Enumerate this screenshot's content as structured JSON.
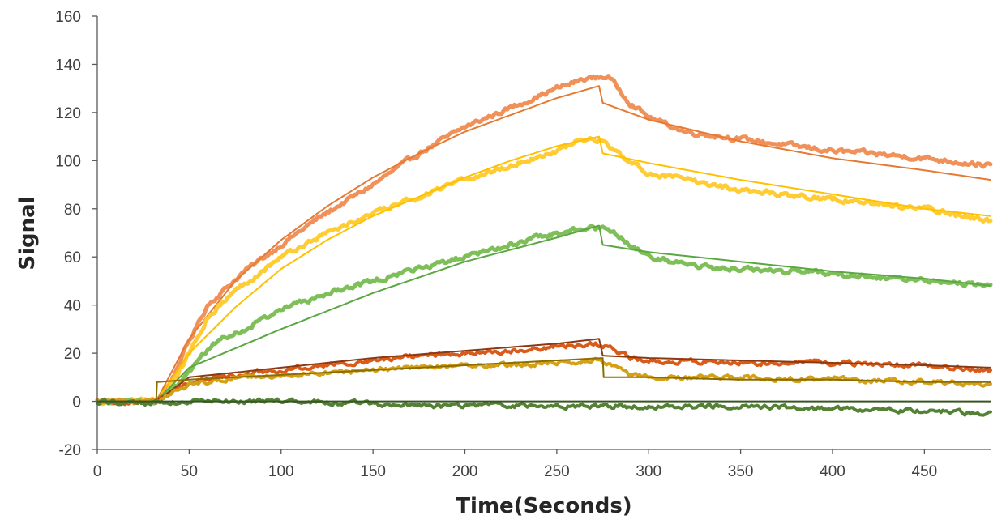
{
  "chart_data": {
    "type": "line",
    "title": "",
    "xlabel": "Time(Seconds)",
    "ylabel": "Signal",
    "xlim": [
      0,
      486
    ],
    "ylim": [
      -20,
      160
    ],
    "xticks": [
      0,
      50,
      100,
      150,
      200,
      250,
      300,
      350,
      400,
      450
    ],
    "yticks": [
      -20,
      0,
      20,
      40,
      60,
      80,
      100,
      120,
      140,
      160
    ],
    "grid": false,
    "legend": "none",
    "association_start": 32,
    "dissociation_start": 275,
    "series": [
      {
        "kind": "measured",
        "color": "#F0915A",
        "width": 5,
        "x": [
          0,
          32,
          40,
          50,
          60,
          80,
          100,
          120,
          150,
          175,
          200,
          225,
          250,
          265,
          278,
          290,
          300,
          320,
          350,
          380,
          400,
          420,
          450,
          486
        ],
        "y": [
          0,
          0,
          8,
          25,
          40,
          54,
          65,
          76,
          90,
          103,
          114,
          122,
          130,
          134,
          135,
          124,
          118,
          112,
          109,
          106,
          104,
          103,
          101,
          98
        ]
      },
      {
        "kind": "fit",
        "color": "#E57A33",
        "width": 2,
        "x": [
          0,
          32,
          50,
          75,
          100,
          125,
          150,
          175,
          200,
          225,
          250,
          273,
          275,
          300,
          350,
          400,
          450,
          486
        ],
        "y": [
          0,
          0,
          26,
          50,
          67,
          81,
          93,
          103,
          112,
          119,
          126,
          131,
          124,
          117,
          108,
          101,
          96,
          92
        ]
      },
      {
        "kind": "measured",
        "color": "#FFCC33",
        "width": 5,
        "x": [
          0,
          32,
          40,
          50,
          60,
          75,
          100,
          125,
          150,
          175,
          200,
          225,
          250,
          265,
          275,
          290,
          300,
          320,
          350,
          400,
          450,
          486
        ],
        "y": [
          0,
          0,
          6,
          20,
          35,
          46,
          60,
          70,
          78,
          85,
          92,
          98,
          104,
          109,
          108,
          99,
          95,
          92,
          88,
          84,
          80,
          75
        ]
      },
      {
        "kind": "fit",
        "color": "#FFC000",
        "width": 2,
        "x": [
          0,
          32,
          50,
          75,
          100,
          125,
          150,
          175,
          200,
          225,
          250,
          273,
          275,
          300,
          350,
          400,
          450,
          486
        ],
        "y": [
          0,
          0,
          20,
          39,
          55,
          67,
          77,
          85,
          93,
          100,
          106,
          110,
          103,
          99,
          92,
          86,
          80,
          77
        ]
      },
      {
        "kind": "measured",
        "color": "#7FBF5A",
        "width": 5,
        "x": [
          0,
          32,
          45,
          55,
          65,
          80,
          100,
          125,
          150,
          175,
          200,
          225,
          250,
          265,
          278,
          290,
          300,
          325,
          350,
          400,
          450,
          486
        ],
        "y": [
          0,
          0,
          8,
          17,
          25,
          30,
          38,
          45,
          50,
          55,
          60,
          65,
          70,
          72,
          72,
          65,
          60,
          56,
          55,
          53,
          50,
          48
        ]
      },
      {
        "kind": "fit",
        "color": "#5BA842",
        "width": 2,
        "x": [
          0,
          32,
          50,
          75,
          100,
          150,
          200,
          250,
          273,
          275,
          300,
          350,
          400,
          450,
          486
        ],
        "y": [
          0,
          0,
          14,
          22,
          30,
          45,
          58,
          68,
          73,
          65,
          62,
          58,
          54,
          51,
          48
        ]
      },
      {
        "kind": "measured",
        "color": "#D95B1A",
        "width": 4,
        "x": [
          0,
          32,
          50,
          75,
          100,
          125,
          150,
          175,
          200,
          225,
          250,
          270,
          280,
          290,
          300,
          350,
          400,
          450,
          486
        ],
        "y": [
          0,
          0,
          8,
          11,
          13,
          15,
          17,
          19,
          20,
          21,
          23,
          24,
          22,
          18,
          17,
          16,
          16,
          15,
          13
        ]
      },
      {
        "kind": "fit",
        "color": "#8B3A12",
        "width": 2,
        "x": [
          0,
          32,
          50,
          100,
          150,
          200,
          250,
          273,
          275,
          300,
          350,
          400,
          450,
          486
        ],
        "y": [
          0,
          0,
          10,
          14,
          18,
          21,
          24,
          26,
          19,
          18,
          17,
          16,
          15,
          14
        ]
      },
      {
        "kind": "measured",
        "color": "#D4A017",
        "width": 4,
        "x": [
          0,
          32,
          50,
          75,
          100,
          125,
          150,
          175,
          200,
          225,
          250,
          270,
          280,
          290,
          300,
          325,
          350,
          400,
          450,
          486
        ],
        "y": [
          0,
          0,
          7,
          10,
          11,
          12,
          13,
          14,
          15,
          15,
          16,
          17,
          15,
          11,
          10,
          10,
          10,
          9,
          8,
          7
        ]
      },
      {
        "kind": "fit",
        "color": "#8C6D00",
        "width": 2,
        "x": [
          0,
          32,
          32.5,
          50,
          100,
          150,
          200,
          250,
          275,
          275.5,
          300,
          350,
          400,
          450,
          486
        ],
        "y": [
          0,
          0,
          8,
          9,
          11,
          13,
          15,
          17,
          18,
          10,
          10,
          9,
          9,
          8,
          8
        ]
      },
      {
        "kind": "measured",
        "color": "#548235",
        "width": 4,
        "x": [
          0,
          25,
          50,
          100,
          150,
          200,
          250,
          300,
          350,
          400,
          450,
          486
        ],
        "y": [
          0,
          -1,
          0,
          0,
          -1,
          -2,
          -2,
          -2,
          -2,
          -3,
          -4,
          -5
        ]
      },
      {
        "kind": "fit",
        "color": "#375623",
        "width": 2,
        "x": [
          0,
          486
        ],
        "y": [
          0,
          0
        ]
      }
    ]
  }
}
